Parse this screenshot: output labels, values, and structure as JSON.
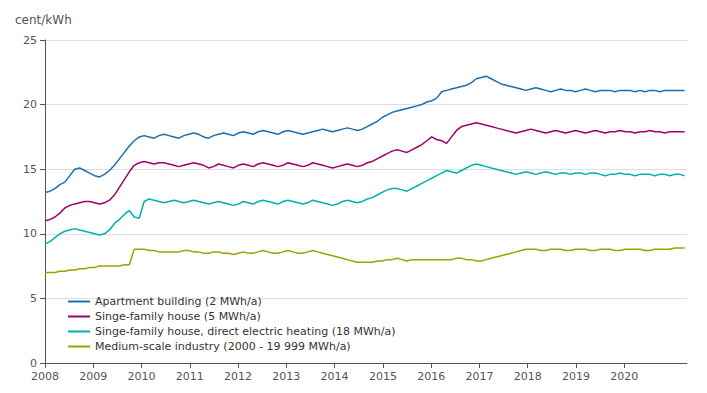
{
  "chart_data": {
    "type": "line",
    "ylabel": "cent/kWh",
    "xlim": [
      2008.0,
      2021.3
    ],
    "xticks": [
      2008,
      2009,
      2010,
      2011,
      2012,
      2013,
      2014,
      2015,
      2016,
      2017,
      2018,
      2019,
      2020
    ],
    "ylim": [
      0,
      25
    ],
    "yticks": [
      0,
      5,
      10,
      15,
      20,
      25
    ],
    "grid": true,
    "legend": "lower left",
    "x": [
      2008,
      2008.1027,
      2008.2054,
      2008.3081,
      2008.4109,
      2008.5136,
      2008.6163,
      2008.719,
      2008.8217,
      2008.9244,
      2009.0271,
      2009.1298,
      2009.2326,
      2009.3353,
      2009.438,
      2009.5407,
      2009.6434,
      2009.7461,
      2009.8488,
      2009.9516,
      2010.0543,
      2010.157,
      2010.2597,
      2010.3624,
      2010.4651,
      2010.5678,
      2010.6705,
      2010.7733,
      2010.876,
      2010.9787,
      2011.0814,
      2011.1841,
      2011.2868,
      2011.3895,
      2011.4922,
      2011.595,
      2011.6977,
      2011.8004,
      2011.9031,
      2012.0058,
      2012.1085,
      2012.2112,
      2012.314,
      2012.4167,
      2012.5194,
      2012.6221,
      2012.7248,
      2012.8275,
      2012.9302,
      2013.0329,
      2013.1357,
      2013.2384,
      2013.3411,
      2013.4438,
      2013.5465,
      2013.6492,
      2013.7519,
      2013.8547,
      2013.9574,
      2014.0601,
      2014.1628,
      2014.2655,
      2014.3682,
      2014.4709,
      2014.5736,
      2014.6764,
      2014.7791,
      2014.8818,
      2014.9845,
      2015.0872,
      2015.1899,
      2015.2926,
      2015.3953,
      2015.4981,
      2015.6008,
      2015.7035,
      2015.8062,
      2015.9089,
      2016.0116,
      2016.1143,
      2016.2171,
      2016.3198,
      2016.4225,
      2016.5252,
      2016.6279,
      2016.7306,
      2016.8333,
      2016.936,
      2017.0388,
      2017.1415,
      2017.2442,
      2017.3469,
      2017.4496,
      2017.5523,
      2017.655,
      2017.7578,
      2017.8605,
      2017.9632,
      2018.0659,
      2018.1686,
      2018.2713,
      2018.374,
      2018.4767,
      2018.5795,
      2018.6822,
      2018.7849,
      2018.8876,
      2018.9903,
      2019.093,
      2019.1957,
      2019.2984,
      2019.4012,
      2019.5039,
      2019.6066,
      2019.7093,
      2019.812,
      2019.9147,
      2020.0174,
      2020.1202,
      2020.2229,
      2020.3256,
      2020.4283,
      2020.531,
      2020.6337,
      2020.7364,
      2020.8391,
      2020.9419,
      2021.0446,
      2021.1473,
      2021.25
    ],
    "series": [
      {
        "name": "Apartment building (2 MWh/a)",
        "color": "#1a6faf",
        "values": [
          13.2,
          13.3,
          13.5,
          13.8,
          14.0,
          14.5,
          15.0,
          15.1,
          14.9,
          14.7,
          14.5,
          14.4,
          14.6,
          14.9,
          15.3,
          15.8,
          16.3,
          16.8,
          17.2,
          17.5,
          17.6,
          17.5,
          17.4,
          17.6,
          17.7,
          17.6,
          17.5,
          17.4,
          17.6,
          17.7,
          17.8,
          17.7,
          17.5,
          17.4,
          17.6,
          17.7,
          17.8,
          17.7,
          17.6,
          17.8,
          17.9,
          17.8,
          17.7,
          17.9,
          18.0,
          17.9,
          17.8,
          17.7,
          17.9,
          18.0,
          17.9,
          17.8,
          17.7,
          17.8,
          17.9,
          18.0,
          18.1,
          18.0,
          17.9,
          18.0,
          18.1,
          18.2,
          18.1,
          18.0,
          18.1,
          18.3,
          18.5,
          18.7,
          19.0,
          19.2,
          19.4,
          19.5,
          19.6,
          19.7,
          19.8,
          19.9,
          20.0,
          20.2,
          20.3,
          20.5,
          21.0,
          21.1,
          21.2,
          21.3,
          21.4,
          21.5,
          21.7,
          22.0,
          22.1,
          22.2,
          22.0,
          21.8,
          21.6,
          21.5,
          21.4,
          21.3,
          21.2,
          21.1,
          21.2,
          21.3,
          21.2,
          21.1,
          21.0,
          21.1,
          21.2,
          21.1,
          21.1,
          21.0,
          21.1,
          21.2,
          21.1,
          21.0,
          21.1,
          21.1,
          21.1,
          21.0,
          21.1,
          21.1,
          21.1,
          21.0,
          21.1,
          21.0,
          21.1,
          21.1,
          21.0,
          21.1,
          21.1,
          21.1,
          21.1,
          21.1
        ]
      },
      {
        "name": "Singe-family house (5 MWh/a)",
        "color": "#a0006e",
        "values": [
          11.0,
          11.1,
          11.3,
          11.6,
          12.0,
          12.2,
          12.3,
          12.4,
          12.5,
          12.5,
          12.4,
          12.3,
          12.4,
          12.6,
          13.0,
          13.6,
          14.2,
          14.8,
          15.3,
          15.5,
          15.6,
          15.5,
          15.4,
          15.5,
          15.5,
          15.4,
          15.3,
          15.2,
          15.3,
          15.4,
          15.5,
          15.4,
          15.3,
          15.1,
          15.2,
          15.4,
          15.3,
          15.2,
          15.1,
          15.3,
          15.4,
          15.3,
          15.2,
          15.4,
          15.5,
          15.4,
          15.3,
          15.2,
          15.3,
          15.5,
          15.4,
          15.3,
          15.2,
          15.3,
          15.5,
          15.4,
          15.3,
          15.2,
          15.1,
          15.2,
          15.3,
          15.4,
          15.3,
          15.2,
          15.3,
          15.5,
          15.6,
          15.8,
          16.0,
          16.2,
          16.4,
          16.5,
          16.4,
          16.3,
          16.5,
          16.7,
          16.9,
          17.2,
          17.5,
          17.3,
          17.2,
          17.0,
          17.5,
          18.0,
          18.3,
          18.4,
          18.5,
          18.6,
          18.5,
          18.4,
          18.3,
          18.2,
          18.1,
          18.0,
          17.9,
          17.8,
          17.9,
          18.0,
          18.1,
          18.0,
          17.9,
          17.8,
          17.9,
          18.0,
          17.9,
          17.8,
          17.9,
          18.0,
          17.9,
          17.8,
          17.9,
          18.0,
          17.9,
          17.8,
          17.9,
          17.9,
          18.0,
          17.9,
          17.9,
          17.8,
          17.9,
          17.9,
          18.0,
          17.9,
          17.9,
          17.8,
          17.9,
          17.9,
          17.9,
          17.9
        ]
      },
      {
        "name": "Singe-family house, direct electric heating (18 MWh/a)",
        "color": "#00b0b0",
        "values": [
          9.2,
          9.4,
          9.7,
          10.0,
          10.2,
          10.3,
          10.4,
          10.3,
          10.2,
          10.1,
          10.0,
          9.9,
          10.0,
          10.3,
          10.8,
          11.1,
          11.5,
          11.8,
          11.3,
          11.2,
          12.5,
          12.7,
          12.6,
          12.5,
          12.4,
          12.5,
          12.6,
          12.5,
          12.4,
          12.5,
          12.6,
          12.5,
          12.4,
          12.3,
          12.4,
          12.5,
          12.4,
          12.3,
          12.2,
          12.3,
          12.5,
          12.4,
          12.3,
          12.5,
          12.6,
          12.5,
          12.4,
          12.3,
          12.5,
          12.6,
          12.5,
          12.4,
          12.3,
          12.4,
          12.6,
          12.5,
          12.4,
          12.3,
          12.2,
          12.3,
          12.5,
          12.6,
          12.5,
          12.4,
          12.5,
          12.7,
          12.8,
          13.0,
          13.2,
          13.4,
          13.5,
          13.5,
          13.4,
          13.3,
          13.5,
          13.7,
          13.9,
          14.1,
          14.3,
          14.5,
          14.7,
          14.9,
          14.8,
          14.7,
          14.9,
          15.1,
          15.3,
          15.4,
          15.3,
          15.2,
          15.1,
          15.0,
          14.9,
          14.8,
          14.7,
          14.6,
          14.7,
          14.8,
          14.7,
          14.6,
          14.7,
          14.8,
          14.7,
          14.6,
          14.7,
          14.7,
          14.6,
          14.7,
          14.7,
          14.6,
          14.7,
          14.7,
          14.6,
          14.5,
          14.6,
          14.6,
          14.7,
          14.6,
          14.6,
          14.5,
          14.6,
          14.6,
          14.6,
          14.5,
          14.6,
          14.6,
          14.5,
          14.6,
          14.6,
          14.5
        ]
      },
      {
        "name": "Medium-scale industry (2000 - 19 999 MWh/a)",
        "color": "#a0a000",
        "values": [
          7.0,
          7.0,
          7.0,
          7.1,
          7.1,
          7.2,
          7.2,
          7.3,
          7.3,
          7.4,
          7.4,
          7.5,
          7.5,
          7.5,
          7.5,
          7.5,
          7.6,
          7.6,
          8.8,
          8.8,
          8.8,
          8.7,
          8.7,
          8.6,
          8.6,
          8.6,
          8.6,
          8.6,
          8.7,
          8.7,
          8.6,
          8.6,
          8.5,
          8.5,
          8.6,
          8.6,
          8.5,
          8.5,
          8.4,
          8.5,
          8.6,
          8.5,
          8.5,
          8.6,
          8.7,
          8.6,
          8.5,
          8.5,
          8.6,
          8.7,
          8.6,
          8.5,
          8.5,
          8.6,
          8.7,
          8.6,
          8.5,
          8.4,
          8.3,
          8.2,
          8.1,
          8.0,
          7.9,
          7.8,
          7.8,
          7.8,
          7.8,
          7.9,
          7.9,
          8.0,
          8.0,
          8.1,
          8.0,
          7.9,
          8.0,
          8.0,
          8.0,
          8.0,
          8.0,
          8.0,
          8.0,
          8.0,
          8.0,
          8.1,
          8.1,
          8.0,
          8.0,
          7.9,
          7.9,
          8.0,
          8.1,
          8.2,
          8.3,
          8.4,
          8.5,
          8.6,
          8.7,
          8.8,
          8.8,
          8.8,
          8.7,
          8.7,
          8.8,
          8.8,
          8.8,
          8.7,
          8.7,
          8.8,
          8.8,
          8.8,
          8.7,
          8.7,
          8.8,
          8.8,
          8.8,
          8.7,
          8.7,
          8.8,
          8.8,
          8.8,
          8.8,
          8.7,
          8.7,
          8.8,
          8.8,
          8.8,
          8.8,
          8.9,
          8.9,
          8.9
        ]
      }
    ]
  }
}
